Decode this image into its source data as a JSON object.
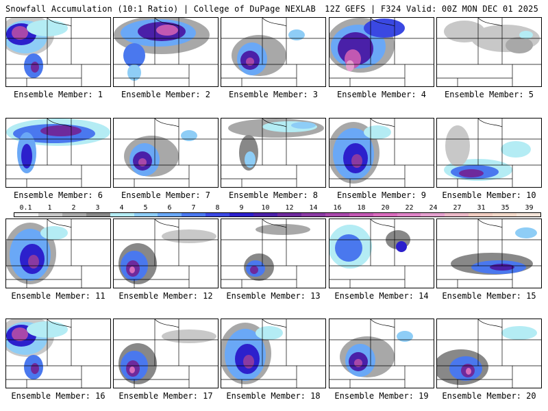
{
  "header": {
    "left": "Snowfall Accumulation (10:1 Ratio) | College of DuPage NEXLAB",
    "right": "12Z GEFS | F324 Valid: 00Z MON DEC 01 2025"
  },
  "members": [
    {
      "label": "Ensemble Member: 1",
      "snow": "nw-heavy"
    },
    {
      "label": "Ensemble Member: 2",
      "snow": "north-heavy"
    },
    {
      "label": "Ensemble Member: 3",
      "snow": "central"
    },
    {
      "label": "Ensemble Member: 4",
      "snow": "nw-extreme"
    },
    {
      "label": "Ensemble Member: 5",
      "snow": "light"
    },
    {
      "label": "Ensemble Member: 6",
      "snow": "north-band"
    },
    {
      "label": "Ensemble Member: 7",
      "snow": "central"
    },
    {
      "label": "Ensemble Member: 8",
      "snow": "north-light"
    },
    {
      "label": "Ensemble Member: 9",
      "snow": "west-heavy"
    },
    {
      "label": "Ensemble Member: 10",
      "snow": "diagonal-band"
    },
    {
      "label": "Ensemble Member: 11",
      "snow": "west-heavy"
    },
    {
      "label": "Ensemble Member: 12",
      "snow": "southwest"
    },
    {
      "label": "Ensemble Member: 13",
      "snow": "central-small"
    },
    {
      "label": "Ensemble Member: 14",
      "snow": "west-moderate"
    },
    {
      "label": "Ensemble Member: 15",
      "snow": "east-band"
    },
    {
      "label": "Ensemble Member: 16",
      "snow": "nw-heavy"
    },
    {
      "label": "Ensemble Member: 17",
      "snow": "southwest"
    },
    {
      "label": "Ensemble Member: 18",
      "snow": "west-heavy"
    },
    {
      "label": "Ensemble Member: 19",
      "snow": "central"
    },
    {
      "label": "Ensemble Member: 20",
      "snow": "south"
    }
  ],
  "scale": {
    "values": [
      "0.1",
      "1",
      "2",
      "3",
      "4",
      "5",
      "6",
      "7",
      "8",
      "9",
      "10",
      "12",
      "14",
      "16",
      "18",
      "20",
      "22",
      "24",
      "27",
      "31",
      "35",
      "39"
    ],
    "colors": [
      "#f0f0f0",
      "#c8c8c8",
      "#a8a8a8",
      "#888888",
      "#b4ecf4",
      "#8ecdf6",
      "#6aa8f6",
      "#4a78ee",
      "#3a48e2",
      "#2c20cc",
      "#4a20a8",
      "#6e2a9c",
      "#8a3aa2",
      "#a848aa",
      "#c258b2",
      "#d86cbc",
      "#de84c6",
      "#e4a0ce",
      "#eab8c6",
      "#f0ccc0",
      "#f2d8c8",
      "#f4e4d8"
    ]
  },
  "colors": {
    "map_bg": "#ffffff",
    "border": "#000000"
  }
}
